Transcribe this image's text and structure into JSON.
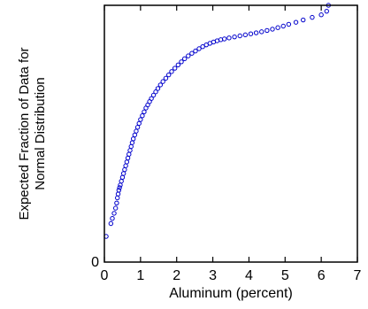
{
  "chart_data": {
    "type": "scatter",
    "xlabel": "Aluminum (percent)",
    "ylabel_lines": [
      "Expected Fraction of Data for",
      "Normal Distribution"
    ],
    "xlim": [
      0,
      7
    ],
    "ylim": [
      0,
      1
    ],
    "x_ticks": [
      0,
      1,
      2,
      3,
      4,
      5,
      6,
      7
    ],
    "y_ticks": [
      0
    ],
    "grid": false,
    "legend": "none",
    "marker": "open-circle",
    "marker_color": "#0000cc",
    "series": [
      {
        "x": [
          0.05,
          0.18,
          0.22,
          0.27,
          0.31,
          0.34,
          0.36,
          0.38,
          0.4,
          0.42,
          0.44,
          0.47,
          0.5,
          0.53,
          0.56,
          0.59,
          0.62,
          0.65,
          0.68,
          0.71,
          0.74,
          0.77,
          0.8,
          0.84,
          0.88,
          0.92,
          0.96,
          1.0,
          1.05,
          1.1,
          1.15,
          1.2,
          1.25,
          1.3,
          1.36,
          1.42,
          1.48,
          1.55,
          1.62,
          1.7,
          1.78,
          1.86,
          1.95,
          2.04,
          2.13,
          2.22,
          2.32,
          2.42,
          2.52,
          2.62,
          2.72,
          2.82,
          2.92,
          3.02,
          3.12,
          3.22,
          3.32,
          3.45,
          3.6,
          3.75,
          3.9,
          4.05,
          4.2,
          4.35,
          4.5,
          4.65,
          4.8,
          4.95,
          5.1,
          5.3,
          5.5,
          5.75,
          6.0,
          6.15,
          6.2
        ],
        "y": [
          0.1,
          0.15,
          0.17,
          0.19,
          0.21,
          0.23,
          0.25,
          0.265,
          0.28,
          0.29,
          0.3,
          0.315,
          0.33,
          0.345,
          0.36,
          0.375,
          0.39,
          0.405,
          0.42,
          0.435,
          0.45,
          0.465,
          0.48,
          0.495,
          0.51,
          0.525,
          0.54,
          0.555,
          0.57,
          0.585,
          0.6,
          0.612,
          0.625,
          0.637,
          0.65,
          0.663,
          0.676,
          0.69,
          0.703,
          0.716,
          0.729,
          0.742,
          0.755,
          0.768,
          0.78,
          0.792,
          0.803,
          0.813,
          0.822,
          0.831,
          0.839,
          0.846,
          0.852,
          0.857,
          0.862,
          0.866,
          0.869,
          0.873,
          0.877,
          0.881,
          0.885,
          0.889,
          0.893,
          0.897,
          0.902,
          0.907,
          0.913,
          0.919,
          0.926,
          0.934,
          0.943,
          0.953,
          0.963,
          0.977,
          1.0
        ]
      }
    ]
  }
}
